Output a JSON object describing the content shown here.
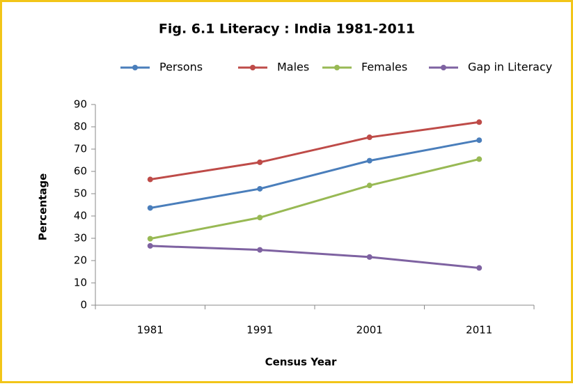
{
  "chart_data": {
    "type": "line",
    "title": "Fig. 6.1  Literacy : India 1981-2011",
    "xlabel": "Census Year",
    "ylabel": "Percentage",
    "categories": [
      "1981",
      "1991",
      "2001",
      "2011"
    ],
    "series": [
      {
        "name": "Persons",
        "color": "#4a7ebb",
        "values": [
          43.6,
          52.2,
          64.8,
          74.0
        ]
      },
      {
        "name": "Males",
        "color": "#be4b48",
        "values": [
          56.4,
          64.1,
          75.3,
          82.1
        ]
      },
      {
        "name": "Females",
        "color": "#98b954",
        "values": [
          29.8,
          39.3,
          53.7,
          65.5
        ]
      },
      {
        "name": "Gap in Literacy",
        "color": "#7e62a1",
        "values": [
          26.6,
          24.8,
          21.6,
          16.7
        ]
      }
    ],
    "ylim": [
      0,
      90
    ],
    "yticks": [
      0,
      10,
      20,
      30,
      40,
      50,
      60,
      70,
      80,
      90
    ],
    "grid": false,
    "legend": "top"
  }
}
